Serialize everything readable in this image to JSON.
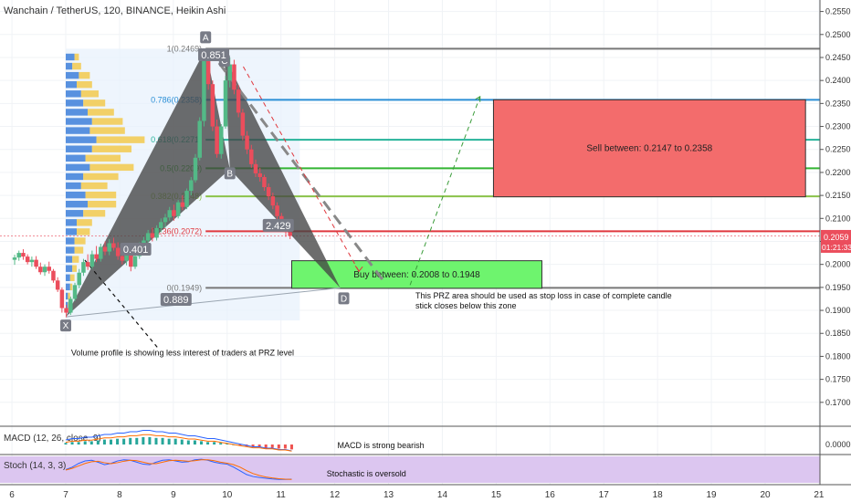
{
  "header": {
    "title": "Wanchain / TetherUS, 120, BINANCE, Heikin Ashi"
  },
  "colors": {
    "up": "#53b987",
    "down": "#eb4d5c",
    "pattern": "#444444",
    "sell": "#f36c6c",
    "buy": "#6ef46e",
    "stoch_bg": "#dcc6f0",
    "vp_up": "#3d7fd9",
    "vp_down": "#f2c94c"
  },
  "price_badge": {
    "value": "0.2059",
    "timer": "01:21:33"
  },
  "chart_data": {
    "type": "candlestick",
    "ylim": [
      0.165,
      0.2575
    ],
    "y_ticks": [
      "0.2550",
      "0.2500",
      "0.2450",
      "0.2400",
      "0.2350",
      "0.2300",
      "0.2250",
      "0.2200",
      "0.2150",
      "0.2100",
      "0.2050",
      "0.2000",
      "0.1950",
      "0.1900",
      "0.1850",
      "0.1800",
      "0.1750",
      "0.1700"
    ],
    "macd_tick": "0.0000",
    "x_ticks": [
      "6",
      "7",
      "8",
      "9",
      "10",
      "11",
      "12",
      "13",
      "14",
      "15",
      "16",
      "17",
      "18",
      "19",
      "20",
      "21"
    ],
    "fib_levels": [
      {
        "label": "1(0.2469)",
        "value": 0.2469,
        "color": "#787878"
      },
      {
        "label": "0.786(0.2358)",
        "value": 0.2358,
        "color": "#2b8fd6"
      },
      {
        "label": "0.618(0.2271)",
        "value": 0.2271,
        "color": "#26b39a"
      },
      {
        "label": "0.5(0.2209)",
        "value": 0.2209,
        "color": "#33b533"
      },
      {
        "label": "0.382(0.2148)",
        "value": 0.2148,
        "color": "#8bc34a"
      },
      {
        "label": "0.236(0.2072)",
        "value": 0.2072,
        "color": "#e0383e"
      },
      {
        "label": "0(0.1949)",
        "value": 0.1949,
        "color": "#787878"
      }
    ],
    "points": {
      "X": [
        7.0,
        0.1886
      ],
      "A": [
        9.6,
        0.2469
      ],
      "B": [
        10.05,
        0.2207
      ],
      "C": [
        9.95,
        0.2452
      ],
      "D": [
        12.1,
        0.1949
      ]
    },
    "ratios": [
      {
        "label": "0.851",
        "x": 9.75,
        "y": 0.2454
      },
      {
        "label": "0.401",
        "x": 8.3,
        "y": 0.2031
      },
      {
        "label": "2.429",
        "x": 10.95,
        "y": 0.2083
      },
      {
        "label": "0.889",
        "x": 9.05,
        "y": 0.1922
      }
    ],
    "zones": [
      {
        "label": "Sell between: 0.2147 to 0.2358",
        "x1": 14.95,
        "x2": 20.75,
        "top": 0.2358,
        "bottom": 0.2147
      },
      {
        "label": "Buy between: 0.2008 to 0.1948",
        "x1": 11.2,
        "x2": 15.85,
        "top": 0.2008,
        "bottom": 0.1948
      }
    ],
    "annotations": {
      "volume": "Volume profile is showing less interest of traders at PRZ level",
      "prz": [
        "This PRZ area should be used as stop loss in case of complete candle",
        "stick closes below this zone"
      ],
      "macd": "MACD is strong bearish",
      "stoch": "Stochastic is oversold"
    },
    "candles": [
      [
        6.05,
        0.201,
        0.2021,
        0.1999,
        0.2015
      ],
      [
        6.13,
        0.2015,
        0.203,
        0.2008,
        0.2025
      ],
      [
        6.21,
        0.2025,
        0.2033,
        0.201,
        0.2017
      ],
      [
        6.29,
        0.2017,
        0.2022,
        0.2,
        0.2005
      ],
      [
        6.37,
        0.2005,
        0.2017,
        0.1995,
        0.201
      ],
      [
        6.45,
        0.201,
        0.2018,
        0.199,
        0.1995
      ],
      [
        6.53,
        0.1995,
        0.2004,
        0.1978,
        0.1983
      ],
      [
        6.61,
        0.1983,
        0.2,
        0.1975,
        0.1995
      ],
      [
        6.69,
        0.1995,
        0.2006,
        0.198,
        0.1986
      ],
      [
        6.77,
        0.1986,
        0.199,
        0.196,
        0.1965
      ],
      [
        6.85,
        0.1965,
        0.1972,
        0.194,
        0.1945
      ],
      [
        6.93,
        0.1945,
        0.195,
        0.1895,
        0.1905
      ],
      [
        7.01,
        0.1905,
        0.1912,
        0.1885,
        0.1895
      ],
      [
        7.09,
        0.1895,
        0.193,
        0.189,
        0.1925
      ],
      [
        7.17,
        0.1925,
        0.196,
        0.192,
        0.1955
      ],
      [
        7.25,
        0.1955,
        0.199,
        0.1948,
        0.1982
      ],
      [
        7.33,
        0.1982,
        0.2012,
        0.1975,
        0.2005
      ],
      [
        7.41,
        0.2005,
        0.2022,
        0.1988,
        0.1995
      ],
      [
        7.49,
        0.1995,
        0.203,
        0.199,
        0.2022
      ],
      [
        7.57,
        0.2022,
        0.204,
        0.2005,
        0.2012
      ],
      [
        7.65,
        0.2012,
        0.2045,
        0.2006,
        0.2038
      ],
      [
        7.73,
        0.2038,
        0.205,
        0.202,
        0.2028
      ],
      [
        7.81,
        0.2028,
        0.2055,
        0.202,
        0.2046
      ],
      [
        7.89,
        0.2046,
        0.2058,
        0.203,
        0.2036
      ],
      [
        7.97,
        0.2036,
        0.2048,
        0.201,
        0.2018
      ],
      [
        8.05,
        0.2018,
        0.2032,
        0.2,
        0.2008
      ],
      [
        8.13,
        0.2008,
        0.203,
        0.1998,
        0.2024
      ],
      [
        8.21,
        0.2024,
        0.2034,
        0.1985,
        0.1995
      ],
      [
        8.29,
        0.1995,
        0.2025,
        0.199,
        0.2018
      ],
      [
        8.37,
        0.2018,
        0.2048,
        0.2012,
        0.2042
      ],
      [
        8.45,
        0.2042,
        0.206,
        0.2032,
        0.2052
      ],
      [
        8.53,
        0.2052,
        0.2075,
        0.2045,
        0.2068
      ],
      [
        8.61,
        0.2068,
        0.208,
        0.205,
        0.2058
      ],
      [
        8.69,
        0.2058,
        0.2085,
        0.2052,
        0.2079
      ],
      [
        8.77,
        0.2079,
        0.21,
        0.207,
        0.2092
      ],
      [
        8.85,
        0.2092,
        0.211,
        0.208,
        0.2102
      ],
      [
        8.93,
        0.2102,
        0.2125,
        0.2095,
        0.2118
      ],
      [
        9.01,
        0.2118,
        0.213,
        0.2095,
        0.2105
      ],
      [
        9.09,
        0.2105,
        0.214,
        0.21,
        0.2135
      ],
      [
        9.17,
        0.2135,
        0.215,
        0.2118,
        0.2125
      ],
      [
        9.25,
        0.2125,
        0.2165,
        0.212,
        0.216
      ],
      [
        9.33,
        0.216,
        0.219,
        0.215,
        0.2183
      ],
      [
        9.41,
        0.2183,
        0.224,
        0.2178,
        0.2232
      ],
      [
        9.49,
        0.2232,
        0.232,
        0.2226,
        0.2312
      ],
      [
        9.57,
        0.2312,
        0.247,
        0.23,
        0.2452
      ],
      [
        9.65,
        0.2452,
        0.2462,
        0.238,
        0.2392
      ],
      [
        9.73,
        0.2392,
        0.24,
        0.229,
        0.23
      ],
      [
        9.81,
        0.23,
        0.2315,
        0.2232,
        0.224
      ],
      [
        9.89,
        0.224,
        0.2305,
        0.223,
        0.23
      ],
      [
        9.97,
        0.23,
        0.241,
        0.2295,
        0.24
      ],
      [
        10.05,
        0.24,
        0.245,
        0.2385,
        0.2435
      ],
      [
        10.13,
        0.2435,
        0.2445,
        0.237,
        0.238
      ],
      [
        10.21,
        0.238,
        0.239,
        0.232,
        0.233
      ],
      [
        10.29,
        0.233,
        0.2338,
        0.227,
        0.228
      ],
      [
        10.37,
        0.228,
        0.229,
        0.224,
        0.225
      ],
      [
        10.45,
        0.225,
        0.226,
        0.221,
        0.2218
      ],
      [
        10.53,
        0.2218,
        0.2228,
        0.219,
        0.2198
      ],
      [
        10.61,
        0.2198,
        0.221,
        0.218,
        0.219
      ],
      [
        10.69,
        0.219,
        0.2195,
        0.216,
        0.2168
      ],
      [
        10.77,
        0.2168,
        0.2176,
        0.214,
        0.2148
      ],
      [
        10.85,
        0.2148,
        0.2156,
        0.212,
        0.2128
      ],
      [
        10.93,
        0.2128,
        0.2135,
        0.2095,
        0.2105
      ],
      [
        11.01,
        0.2105,
        0.2112,
        0.208,
        0.2088
      ],
      [
        11.09,
        0.2088,
        0.2094,
        0.206,
        0.207
      ],
      [
        11.17,
        0.207,
        0.208,
        0.2055,
        0.2062
      ]
    ],
    "volume_profile": [
      [
        0.245,
        4,
        2
      ],
      [
        0.243,
        3,
        4
      ],
      [
        0.241,
        6,
        5
      ],
      [
        0.239,
        5,
        7
      ],
      [
        0.237,
        7,
        8
      ],
      [
        0.235,
        8,
        10
      ],
      [
        0.233,
        10,
        12
      ],
      [
        0.231,
        12,
        14
      ],
      [
        0.229,
        11,
        16
      ],
      [
        0.227,
        14,
        22
      ],
      [
        0.225,
        12,
        18
      ],
      [
        0.223,
        9,
        16
      ],
      [
        0.221,
        11,
        20
      ],
      [
        0.219,
        8,
        16
      ],
      [
        0.217,
        7,
        12
      ],
      [
        0.215,
        9,
        14
      ],
      [
        0.213,
        10,
        13
      ],
      [
        0.211,
        8,
        10
      ],
      [
        0.209,
        5,
        7
      ],
      [
        0.207,
        5,
        6
      ],
      [
        0.205,
        4,
        5
      ],
      [
        0.203,
        4,
        4
      ],
      [
        0.201,
        3,
        3
      ],
      [
        0.199,
        3,
        2
      ],
      [
        0.197,
        2,
        2
      ],
      [
        0.195,
        2,
        1
      ],
      [
        0.193,
        1,
        1
      ],
      [
        0.191,
        1,
        1
      ]
    ],
    "macd_hist": [
      2,
      3,
      3,
      4,
      4,
      5,
      6,
      6,
      7,
      7,
      8,
      8,
      9,
      9,
      8,
      8,
      7,
      7,
      6,
      5,
      5,
      4,
      3,
      3,
      2,
      1,
      0,
      -1,
      -2,
      -3,
      -3,
      -4,
      -4,
      -5,
      -5,
      -6
    ],
    "stoch_k": [
      50,
      60,
      75,
      85,
      88,
      80,
      70,
      75,
      85,
      90,
      88,
      80,
      72,
      70,
      80,
      88,
      90,
      85,
      80,
      82,
      90,
      92,
      88,
      80,
      75,
      72,
      60,
      45,
      30,
      22,
      18,
      15,
      12,
      10,
      10,
      11
    ],
    "stoch_d": [
      48,
      55,
      65,
      75,
      82,
      84,
      78,
      74,
      78,
      84,
      88,
      86,
      80,
      74,
      74,
      80,
      86,
      88,
      86,
      84,
      86,
      90,
      90,
      86,
      80,
      76,
      70,
      60,
      46,
      34,
      26,
      20,
      16,
      13,
      11,
      10
    ]
  }
}
